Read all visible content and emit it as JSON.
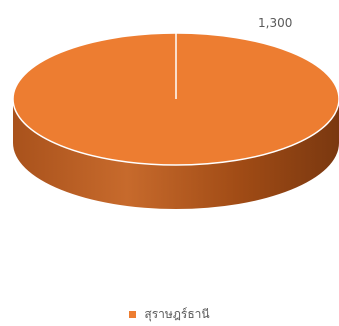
{
  "chart_data": {
    "type": "pie",
    "style": "3d",
    "title": "",
    "legend_position": "bottom",
    "slices": [
      {
        "label": "สุราษฎร์ธานี",
        "value": 1300,
        "value_label": "1,300",
        "color": "#ED7D31"
      }
    ]
  }
}
